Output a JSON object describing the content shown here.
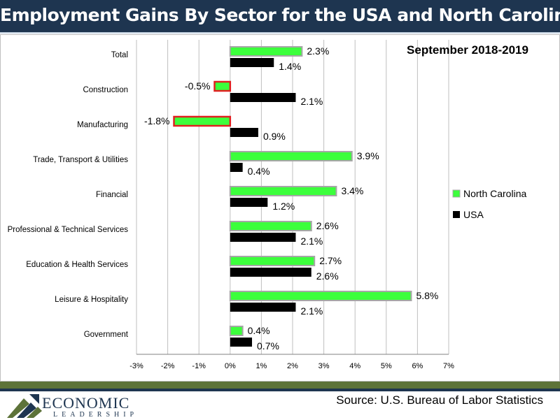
{
  "header": {
    "title": "Employment Gains By Sector for the USA and North Carolina"
  },
  "footer": {
    "source": "Source: U.S. Bureau of Labor Statistics",
    "logo_main": "ECONOMIC",
    "logo_sub": "LEADERSHIP"
  },
  "colors": {
    "header_bg": "#1e3550",
    "nc": "#3cff3c",
    "usa": "#000000",
    "negative_border": "#e02020",
    "footer_green": "#5d7339"
  },
  "chart_data": {
    "type": "bar",
    "orientation": "horizontal",
    "subtitle": "September 2018-2019",
    "categories": [
      "Total",
      "Construction",
      "Manufacturing",
      "Trade, Transport & Utilities",
      "Financial",
      "Professional & Technical Services",
      "Education & Health Services",
      "Leisure & Hospitality",
      "Government"
    ],
    "series": [
      {
        "name": "North Carolina",
        "values": [
          2.3,
          -0.5,
          -1.8,
          3.9,
          3.4,
          2.6,
          2.7,
          5.8,
          0.4
        ],
        "labels": [
          "2.3%",
          "-0.5%",
          "-1.8%",
          "3.9%",
          "3.4%",
          "2.6%",
          "2.7%",
          "5.8%",
          "0.4%"
        ]
      },
      {
        "name": "USA",
        "values": [
          1.4,
          2.1,
          0.9,
          0.4,
          1.2,
          2.1,
          2.6,
          2.1,
          0.7
        ],
        "labels": [
          "1.4%",
          "2.1%",
          "0.9%",
          "0.4%",
          "1.2%",
          "2.1%",
          "2.6%",
          "2.1%",
          "0.7%"
        ]
      }
    ],
    "x_ticks": [
      "-3%",
      "-2%",
      "-1%",
      "0%",
      "1%",
      "2%",
      "3%",
      "4%",
      "5%",
      "6%",
      "7%"
    ],
    "xlim": [
      -3,
      7
    ],
    "grid": true,
    "legend_position": "right"
  }
}
